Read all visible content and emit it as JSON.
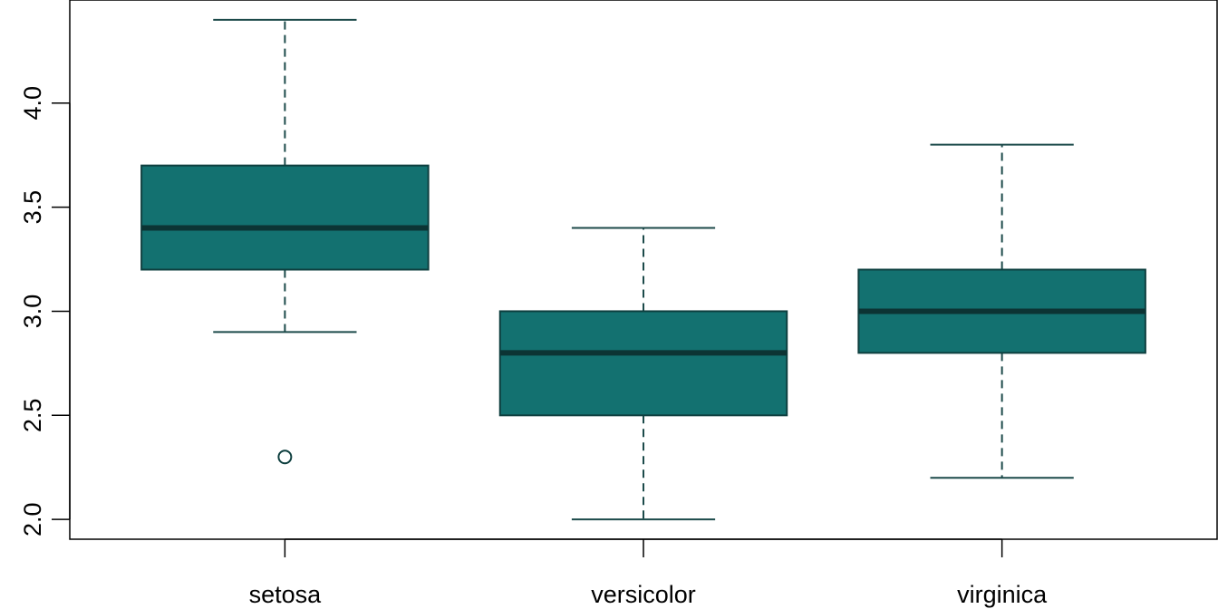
{
  "chart_data": {
    "type": "boxplot",
    "title": "",
    "xlabel": "",
    "ylabel": "",
    "ylim": [
      1.905,
      4.495
    ],
    "categories": [
      "setosa",
      "versicolor",
      "virginica"
    ],
    "y_ticks": [
      2.0,
      2.5,
      3.0,
      3.5,
      4.0
    ],
    "y_tick_labels": [
      "2.0",
      "2.5",
      "3.0",
      "3.5",
      "4.0"
    ],
    "grid": false,
    "legend": "none",
    "boxes": [
      {
        "category": "setosa",
        "whisker_low": 2.9,
        "q1": 3.2,
        "median": 3.4,
        "q3": 3.7,
        "whisker_high": 4.4,
        "outliers": [
          2.3
        ]
      },
      {
        "category": "versicolor",
        "whisker_low": 2.0,
        "q1": 2.5,
        "median": 2.8,
        "q3": 3.0,
        "whisker_high": 3.4,
        "outliers": []
      },
      {
        "category": "virginica",
        "whisker_low": 2.2,
        "q1": 2.8,
        "median": 3.0,
        "q3": 3.2,
        "whisker_high": 3.8,
        "outliers": []
      }
    ],
    "colors": {
      "box_fill": "#137170",
      "box_border": "#0e3f3f",
      "median": "#0c3434",
      "whisker": "#1c4a4a",
      "axis": "#000000"
    }
  }
}
